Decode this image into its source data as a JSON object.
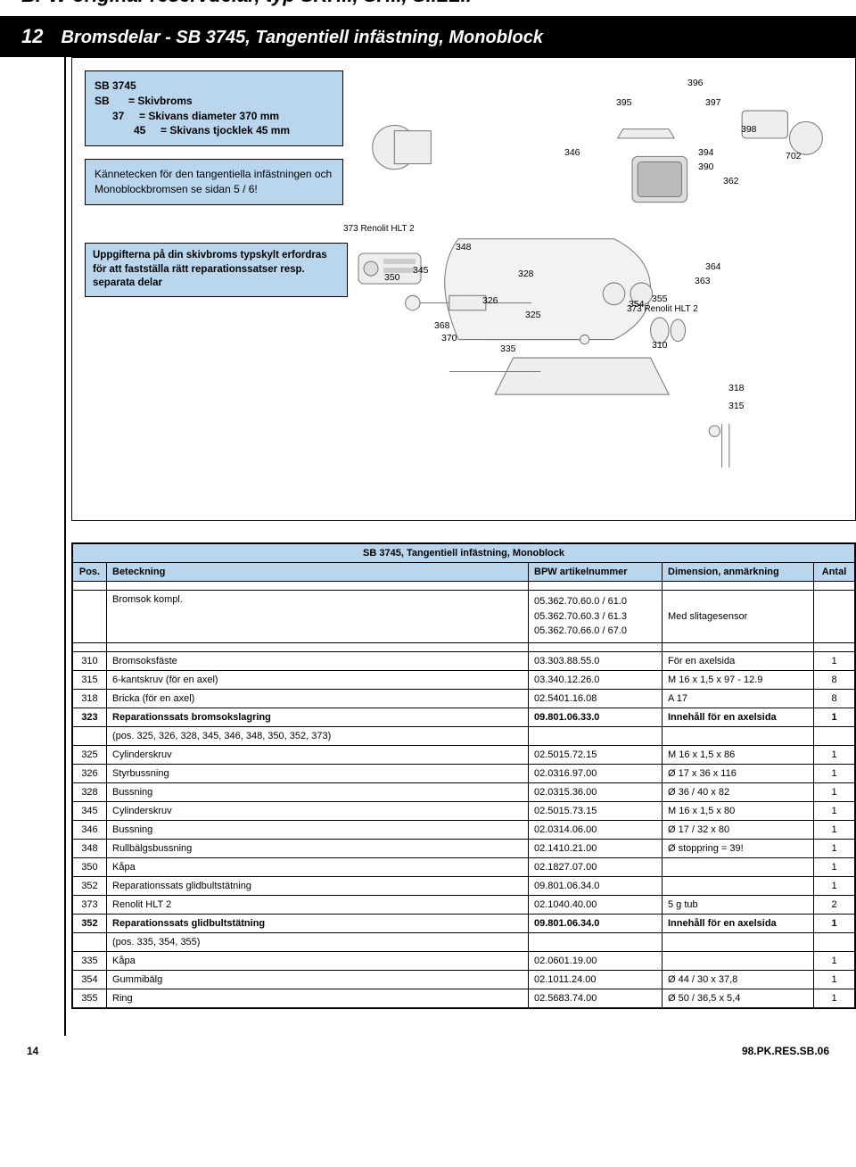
{
  "header": {
    "topTitle": "BPW original-reservdelar, typ SKH.., SH.., S..LL..",
    "sectionNum": "12",
    "sectionTitle": "Bromsdelar - SB 3745, Tangentiell infästning, Monoblock"
  },
  "infoBox1": {
    "line1_c1": "SB 3745",
    "r2c1": "SB",
    "r2c3": "= Skivbroms",
    "r3c1": "37",
    "r3c3": "= Skivans diameter 370 mm",
    "r4c1": "45",
    "r4c3": "= Skivans tjocklek 45 mm"
  },
  "infoBox2": "Kännetecken för den tangentiella infästningen och Monoblockbromsen se sidan 5 / 6!",
  "typeskyltBox": "Uppgifterna på din skivbroms typskylt erfordras för att fastställa rätt reparationssatser resp. separata delar",
  "diagramNotes": {
    "renolit_a": "373 Renolit HLT 2",
    "renolit_b": "373 Renolit HLT 2"
  },
  "diagramLabels": [
    "396",
    "395",
    "397",
    "398",
    "346",
    "394",
    "390",
    "362",
    "702",
    "348",
    "345",
    "350",
    "328",
    "364",
    "363",
    "326",
    "355",
    "354",
    "368",
    "370",
    "325",
    "335",
    "310",
    "318",
    "315"
  ],
  "tableTitle": "SB 3745, Tangentiell infästning, Monoblock",
  "columns": {
    "pos": "Pos.",
    "bet": "Beteckning",
    "art": "BPW artikelnummer",
    "dim": "Dimension, anmärkning",
    "qty": "Antal"
  },
  "introRow": {
    "bet": "Bromsok kompl.",
    "art": "05.362.70.60.0 / 61.0\n05.362.70.60.3 / 61.3\n05.362.70.66.0 / 67.0",
    "dim": "Med slitagesensor"
  },
  "rows": [
    {
      "pos": "310",
      "bet": "Bromsoksfäste",
      "art": "03.303.88.55.0",
      "dim": "För en axelsida",
      "qty": "1"
    },
    {
      "pos": "315",
      "bet": "6-kantskruv (för en axel)",
      "art": "03.340.12.26.0",
      "dim": "M 16 x 1,5 x 97 - 12.9",
      "qty": "8"
    },
    {
      "pos": "318",
      "bet": "Bricka (för en axel)",
      "art": "02.5401.16.08",
      "dim": "A 17",
      "qty": "8"
    },
    {
      "pos": "323",
      "bet": "Reparationssats bromsokslagring",
      "art": "09.801.06.33.0",
      "dim": "Innehåll för en axelsida",
      "qty": "1",
      "bold": true
    },
    {
      "pos": "",
      "bet": "(pos. 325, 326, 328, 345, 346, 348, 350, 352, 373)",
      "art": "",
      "dim": "",
      "qty": ""
    },
    {
      "pos": "325",
      "bet": "Cylinderskruv",
      "art": "02.5015.72.15",
      "dim": "M 16 x 1,5 x 86",
      "qty": "1"
    },
    {
      "pos": "326",
      "bet": "Styrbussning",
      "art": "02.0316.97.00",
      "dim": "Ø 17 x 36 x 116",
      "qty": "1"
    },
    {
      "pos": "328",
      "bet": "Bussning",
      "art": "02.0315.36.00",
      "dim": "Ø 36 / 40 x 82",
      "qty": "1"
    },
    {
      "pos": "345",
      "bet": "Cylinderskruv",
      "art": "02.5015.73.15",
      "dim": "M 16 x 1,5 x 80",
      "qty": "1"
    },
    {
      "pos": "346",
      "bet": "Bussning",
      "art": "02.0314.06.00",
      "dim": "Ø 17 / 32 x 80",
      "qty": "1"
    },
    {
      "pos": "348",
      "bet": "Rullbälgsbussning",
      "art": "02.1410.21.00",
      "dim": "Ø stoppring = 39!",
      "qty": "1"
    },
    {
      "pos": "350",
      "bet": "Kåpa",
      "art": "02.1827.07.00",
      "dim": "",
      "qty": "1"
    },
    {
      "pos": "352",
      "bet": "Reparationssats glidbultstätning",
      "art": "09.801.06.34.0",
      "dim": "",
      "qty": "1"
    },
    {
      "pos": "373",
      "bet": "Renolit HLT 2",
      "art": "02.1040.40.00",
      "dim": "5 g tub",
      "qty": "2"
    },
    {
      "pos": "352",
      "bet": "Reparationssats glidbultstätning",
      "art": "09.801.06.34.0",
      "dim": "Innehåll för en axelsida",
      "qty": "1",
      "bold": true
    },
    {
      "pos": "",
      "bet": "(pos. 335, 354, 355)",
      "art": "",
      "dim": "",
      "qty": ""
    },
    {
      "pos": "335",
      "bet": "Kåpa",
      "art": "02.0601.19.00",
      "dim": "",
      "qty": "1"
    },
    {
      "pos": "354",
      "bet": "Gummibälg",
      "art": "02.1011.24.00",
      "dim": "Ø 44 / 30 x 37,8",
      "qty": "1"
    },
    {
      "pos": "355",
      "bet": "Ring",
      "art": "02.5683.74.00",
      "dim": "Ø 50 / 36,5 x 5,4",
      "qty": "1"
    }
  ],
  "footer": {
    "page": "14",
    "ref": "98.PK.RES.SB.06"
  },
  "colors": {
    "boxBlue": "#b9d6ed",
    "black": "#000000",
    "diagramGrey": "#888888"
  }
}
